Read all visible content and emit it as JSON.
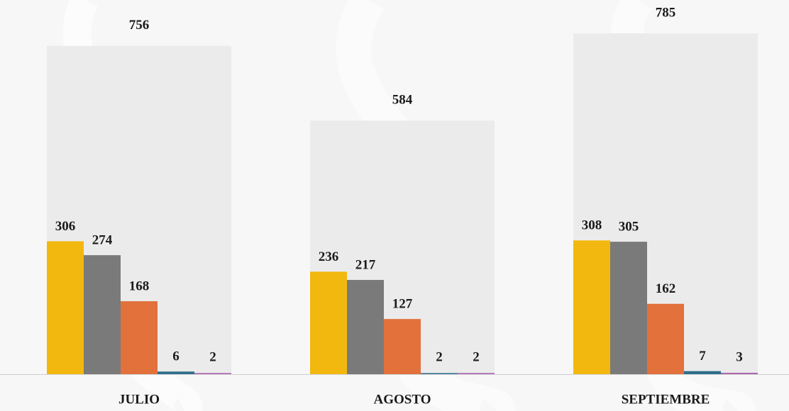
{
  "chart_data": {
    "type": "bar",
    "categories": [
      "JULIO",
      "AGOSTO",
      "SEPTIEMBRE"
    ],
    "totals": {
      "color": "#ebebeb",
      "values": [
        756,
        584,
        785
      ]
    },
    "series": [
      {
        "color": "#f2b80f",
        "values": [
          306,
          236,
          308
        ]
      },
      {
        "color": "#7a7a7a",
        "values": [
          274,
          217,
          305
        ]
      },
      {
        "color": "#e2713b",
        "values": [
          168,
          127,
          162
        ]
      },
      {
        "color": "#2f6e8c",
        "values": [
          6,
          2,
          7
        ]
      },
      {
        "color": "#a65ea8",
        "values": [
          2,
          2,
          3
        ]
      }
    ]
  }
}
